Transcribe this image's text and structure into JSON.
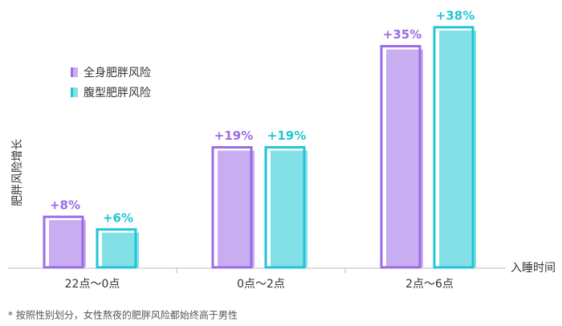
{
  "chart_data": {
    "type": "bar",
    "y_label": "肥胖风险增长",
    "x_label": "入睡时间",
    "categories": [
      "22点～0点",
      "0点～2点",
      "2点～6点"
    ],
    "series": [
      {
        "name": "全身肥胖风险",
        "color": "#9b6be6",
        "values": [
          8,
          19,
          35
        ],
        "value_labels": [
          "+8%",
          "+19%",
          "+35%"
        ]
      },
      {
        "name": "腹型肥胖风险",
        "color": "#1fc6d4",
        "values": [
          6,
          19,
          38
        ],
        "value_labels": [
          "+6%",
          "+19%",
          "+38%"
        ]
      }
    ],
    "footnote": "* 按照性别划分，女性熬夜的肥胖风险都始终高于男性"
  }
}
